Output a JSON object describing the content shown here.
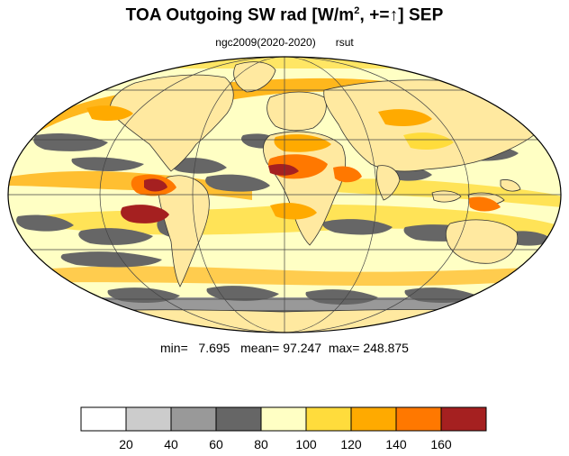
{
  "title": {
    "main": "TOA Outgoing SW rad [W/m",
    "sup": "2",
    "tail": ", +=↑] SEP"
  },
  "subtitle": {
    "left": "ngc2009(2020-2020)",
    "right": "rsut"
  },
  "stats": {
    "min_label": "min=",
    "min": "7.695",
    "mean_label": "mean=",
    "mean": "97.247",
    "max_label": "max=",
    "max": "248.875"
  },
  "colorbar": {
    "colors": [
      "#ffffff",
      "#cccccc",
      "#999999",
      "#666666",
      "#ffffc4",
      "#ffdc3c",
      "#ffaa00",
      "#ff7800",
      "#a52020"
    ],
    "labels": [
      "20",
      "40",
      "60",
      "80",
      "100",
      "120",
      "140",
      "160"
    ]
  },
  "map": {
    "projection": "mollweide",
    "land_color": "#f5f0b0",
    "ocean_color": "#ffffc4",
    "grid": true
  }
}
